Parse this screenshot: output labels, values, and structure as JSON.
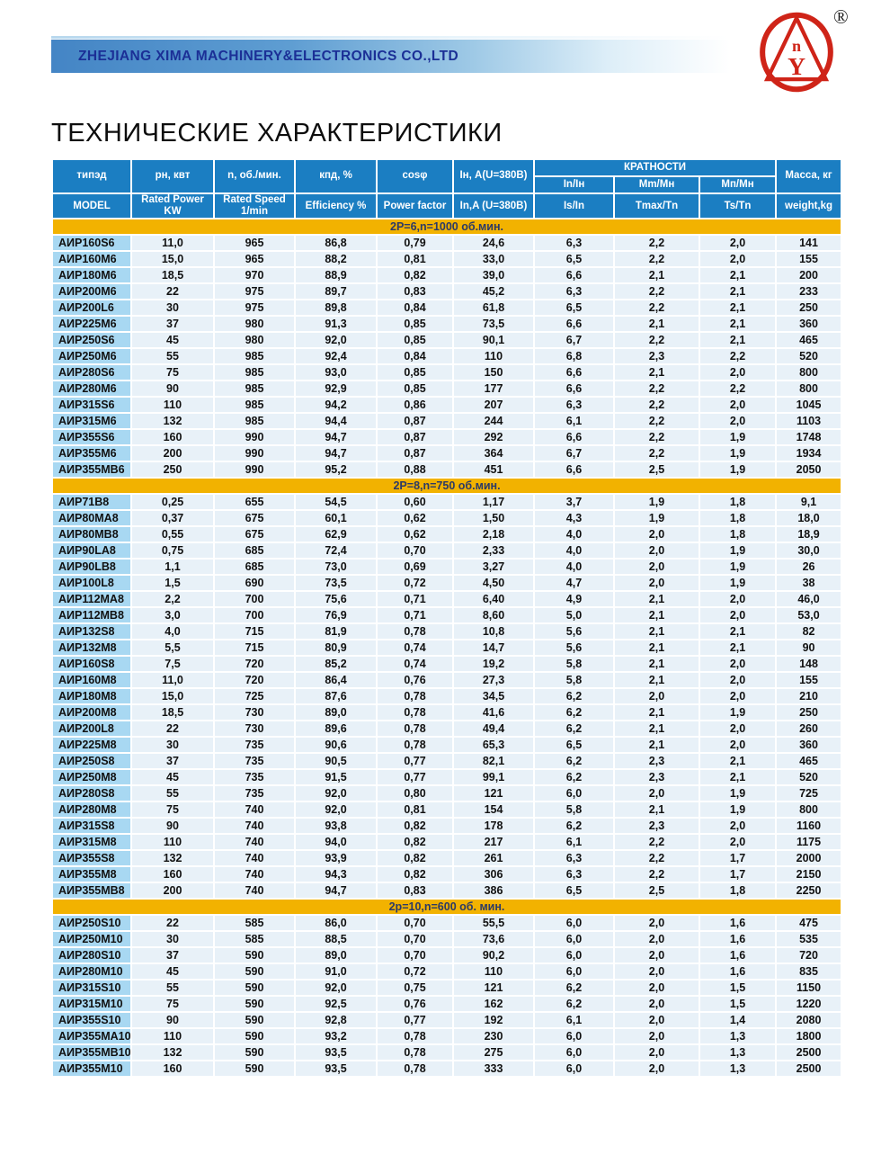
{
  "header": {
    "company": "ZHEJIANG XIMA MACHINERY&ELECTRONICS CO.,LTD",
    "registered_mark": "®",
    "logo": {
      "letter_top": "n",
      "letter_bottom": "Y"
    }
  },
  "title": "ТЕХНИЧЕСКИЕ ХАРАКТЕРИСТИКИ",
  "colors": {
    "header_blue": "#1b7ec2",
    "band_yellow": "#f2b200",
    "model_cell_blue": "#a8d8f2",
    "value_cell_blue": "#e8f1f8",
    "banner_blue": "#4485c5",
    "company_text_navy": "#1b2f96",
    "logo_red": "#cf2418"
  },
  "table": {
    "header_ru": {
      "model": "типэд",
      "power": "рн, квт",
      "speed": "n, об./мин.",
      "efficiency": "кпд, %",
      "cos_phi": "cosφ",
      "current": "Iн, A(U=380В)",
      "ratios_group": "КРАТНОСТИ",
      "ratio_is": "In/Iн",
      "ratio_tmax": "Mm/Мн",
      "ratio_ts": "Мп/Мн",
      "mass": "Масса, кг"
    },
    "header_en": {
      "model": "MODEL",
      "power": "Rated Power\nKW",
      "speed": "Rated Speed\n1/min",
      "efficiency": "Efficiency %",
      "cos_phi": "Power factor",
      "current": "In,A (U=380В)",
      "ratio_is": "Is/In",
      "ratio_tmax": "Tmax/Tn",
      "ratio_ts": "Ts/Tn",
      "mass": "weight,kg"
    },
    "sections": [
      {
        "label": "2P=6,n=1000 об.мин.",
        "rows": [
          [
            "АИР160S6",
            "11,0",
            "965",
            "86,8",
            "0,79",
            "24,6",
            "6,3",
            "2,2",
            "2,0",
            "141"
          ],
          [
            "АИР160M6",
            "15,0",
            "965",
            "88,2",
            "0,81",
            "33,0",
            "6,5",
            "2,2",
            "2,0",
            "155"
          ],
          [
            "АИР180M6",
            "18,5",
            "970",
            "88,9",
            "0,82",
            "39,0",
            "6,6",
            "2,1",
            "2,1",
            "200"
          ],
          [
            "АИР200M6",
            "22",
            "975",
            "89,7",
            "0,83",
            "45,2",
            "6,3",
            "2,2",
            "2,1",
            "233"
          ],
          [
            "АИР200L6",
            "30",
            "975",
            "89,8",
            "0,84",
            "61,8",
            "6,5",
            "2,2",
            "2,1",
            "250"
          ],
          [
            "АИР225M6",
            "37",
            "980",
            "91,3",
            "0,85",
            "73,5",
            "6,6",
            "2,1",
            "2,1",
            "360"
          ],
          [
            "АИР250S6",
            "45",
            "980",
            "92,0",
            "0,85",
            "90,1",
            "6,7",
            "2,2",
            "2,1",
            "465"
          ],
          [
            "АИР250M6",
            "55",
            "985",
            "92,4",
            "0,84",
            "110",
            "6,8",
            "2,3",
            "2,2",
            "520"
          ],
          [
            "АИР280S6",
            "75",
            "985",
            "93,0",
            "0,85",
            "150",
            "6,6",
            "2,1",
            "2,0",
            "800"
          ],
          [
            "АИР280M6",
            "90",
            "985",
            "92,9",
            "0,85",
            "177",
            "6,6",
            "2,2",
            "2,2",
            "800"
          ],
          [
            "АИР315S6",
            "110",
            "985",
            "94,2",
            "0,86",
            "207",
            "6,3",
            "2,2",
            "2,0",
            "1045"
          ],
          [
            "АИР315M6",
            "132",
            "985",
            "94,4",
            "0,87",
            "244",
            "6,1",
            "2,2",
            "2,0",
            "1103"
          ],
          [
            "АИР355S6",
            "160",
            "990",
            "94,7",
            "0,87",
            "292",
            "6,6",
            "2,2",
            "1,9",
            "1748"
          ],
          [
            "АИР355M6",
            "200",
            "990",
            "94,7",
            "0,87",
            "364",
            "6,7",
            "2,2",
            "1,9",
            "1934"
          ],
          [
            "АИР355MB6",
            "250",
            "990",
            "95,2",
            "0,88",
            "451",
            "6,6",
            "2,5",
            "1,9",
            "2050"
          ]
        ]
      },
      {
        "label": "2P=8,n=750 об.мин.",
        "rows": [
          [
            "АИР71B8",
            "0,25",
            "655",
            "54,5",
            "0,60",
            "1,17",
            "3,7",
            "1,9",
            "1,8",
            "9,1"
          ],
          [
            "АИР80MA8",
            "0,37",
            "675",
            "60,1",
            "0,62",
            "1,50",
            "4,3",
            "1,9",
            "1,8",
            "18,0"
          ],
          [
            "АИР80MB8",
            "0,55",
            "675",
            "62,9",
            "0,62",
            "2,18",
            "4,0",
            "2,0",
            "1,8",
            "18,9"
          ],
          [
            "АИР90LA8",
            "0,75",
            "685",
            "72,4",
            "0,70",
            "2,33",
            "4,0",
            "2,0",
            "1,9",
            "30,0"
          ],
          [
            "АИР90LB8",
            "1,1",
            "685",
            "73,0",
            "0,69",
            "3,27",
            "4,0",
            "2,0",
            "1,9",
            "26"
          ],
          [
            "АИР100L8",
            "1,5",
            "690",
            "73,5",
            "0,72",
            "4,50",
            "4,7",
            "2,0",
            "1,9",
            "38"
          ],
          [
            "АИР112MA8",
            "2,2",
            "700",
            "75,6",
            "0,71",
            "6,40",
            "4,9",
            "2,1",
            "2,0",
            "46,0"
          ],
          [
            "АИР112MB8",
            "3,0",
            "700",
            "76,9",
            "0,71",
            "8,60",
            "5,0",
            "2,1",
            "2,0",
            "53,0"
          ],
          [
            "АИР132S8",
            "4,0",
            "715",
            "81,9",
            "0,78",
            "10,8",
            "5,6",
            "2,1",
            "2,1",
            "82"
          ],
          [
            "АИР132M8",
            "5,5",
            "715",
            "80,9",
            "0,74",
            "14,7",
            "5,6",
            "2,1",
            "2,1",
            "90"
          ],
          [
            "АИР160S8",
            "7,5",
            "720",
            "85,2",
            "0,74",
            "19,2",
            "5,8",
            "2,1",
            "2,0",
            "148"
          ],
          [
            "АИР160M8",
            "11,0",
            "720",
            "86,4",
            "0,76",
            "27,3",
            "5,8",
            "2,1",
            "2,0",
            "155"
          ],
          [
            "АИР180M8",
            "15,0",
            "725",
            "87,6",
            "0,78",
            "34,5",
            "6,2",
            "2,0",
            "2,0",
            "210"
          ],
          [
            "АИР200M8",
            "18,5",
            "730",
            "89,0",
            "0,78",
            "41,6",
            "6,2",
            "2,1",
            "1,9",
            "250"
          ],
          [
            "АИР200L8",
            "22",
            "730",
            "89,6",
            "0,78",
            "49,4",
            "6,2",
            "2,1",
            "2,0",
            "260"
          ],
          [
            "АИР225M8",
            "30",
            "735",
            "90,6",
            "0,78",
            "65,3",
            "6,5",
            "2,1",
            "2,0",
            "360"
          ],
          [
            "АИР250S8",
            "37",
            "735",
            "90,5",
            "0,77",
            "82,1",
            "6,2",
            "2,3",
            "2,1",
            "465"
          ],
          [
            "АИР250M8",
            "45",
            "735",
            "91,5",
            "0,77",
            "99,1",
            "6,2",
            "2,3",
            "2,1",
            "520"
          ],
          [
            "АИР280S8",
            "55",
            "735",
            "92,0",
            "0,80",
            "121",
            "6,0",
            "2,0",
            "1,9",
            "725"
          ],
          [
            "АИР280M8",
            "75",
            "740",
            "92,0",
            "0,81",
            "154",
            "5,8",
            "2,1",
            "1,9",
            "800"
          ],
          [
            "АИР315S8",
            "90",
            "740",
            "93,8",
            "0,82",
            "178",
            "6,2",
            "2,3",
            "2,0",
            "1160"
          ],
          [
            "АИР315M8",
            "110",
            "740",
            "94,0",
            "0,82",
            "217",
            "6,1",
            "2,2",
            "2,0",
            "1175"
          ],
          [
            "АИР355S8",
            "132",
            "740",
            "93,9",
            "0,82",
            "261",
            "6,3",
            "2,2",
            "1,7",
            "2000"
          ],
          [
            "АИР355M8",
            "160",
            "740",
            "94,3",
            "0,82",
            "306",
            "6,3",
            "2,2",
            "1,7",
            "2150"
          ],
          [
            "АИР355MB8",
            "200",
            "740",
            "94,7",
            "0,83",
            "386",
            "6,5",
            "2,5",
            "1,8",
            "2250"
          ]
        ]
      },
      {
        "label": "2p=10,n=600 об. мин.",
        "rows": [
          [
            "АИР250S10",
            "22",
            "585",
            "86,0",
            "0,70",
            "55,5",
            "6,0",
            "2,0",
            "1,6",
            "475"
          ],
          [
            "АИР250M10",
            "30",
            "585",
            "88,5",
            "0,70",
            "73,6",
            "6,0",
            "2,0",
            "1,6",
            "535"
          ],
          [
            "АИР280S10",
            "37",
            "590",
            "89,0",
            "0,70",
            "90,2",
            "6,0",
            "2,0",
            "1,6",
            "720"
          ],
          [
            "АИР280M10",
            "45",
            "590",
            "91,0",
            "0,72",
            "110",
            "6,0",
            "2,0",
            "1,6",
            "835"
          ],
          [
            "АИР315S10",
            "55",
            "590",
            "92,0",
            "0,75",
            "121",
            "6,2",
            "2,0",
            "1,5",
            "1150"
          ],
          [
            "АИР315M10",
            "75",
            "590",
            "92,5",
            "0,76",
            "162",
            "6,2",
            "2,0",
            "1,5",
            "1220"
          ],
          [
            "АИР355S10",
            "90",
            "590",
            "92,8",
            "0,77",
            "192",
            "6,1",
            "2,0",
            "1,4",
            "2080"
          ],
          [
            "АИР355MA10",
            "110",
            "590",
            "93,2",
            "0,78",
            "230",
            "6,0",
            "2,0",
            "1,3",
            "1800"
          ],
          [
            "АИР355MB10",
            "132",
            "590",
            "93,5",
            "0,78",
            "275",
            "6,0",
            "2,0",
            "1,3",
            "2500"
          ],
          [
            "АИР355M10",
            "160",
            "590",
            "93,5",
            "0,78",
            "333",
            "6,0",
            "2,0",
            "1,3",
            "2500"
          ]
        ]
      }
    ]
  }
}
